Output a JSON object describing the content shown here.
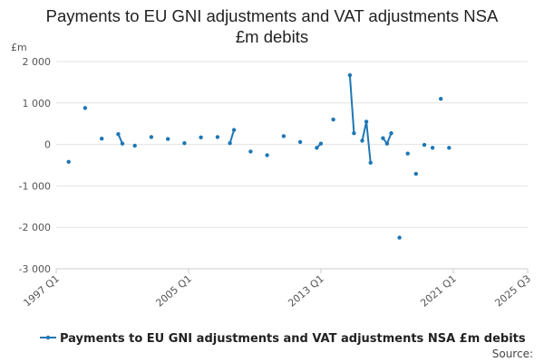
{
  "chart_data": {
    "type": "line",
    "title_lines": [
      "Payments to EU GNI adjustments and VAT adjustments NSA",
      "£m debits"
    ],
    "y_unit": "£m",
    "xlabel": "",
    "ylabel": "",
    "ylim": [
      -3000,
      2000
    ],
    "y_ticks": [
      2000,
      1000,
      0,
      -1000,
      -2000,
      -3000
    ],
    "y_tick_labels": [
      "2 000",
      "1 000",
      "0",
      "-1 000",
      "-2 000",
      "-3 000"
    ],
    "xlim": [
      1997.0,
      2025.5
    ],
    "x_ticks": [
      1997.0,
      2005.0,
      2013.0,
      2021.0,
      2025.5
    ],
    "x_tick_labels": [
      "1997 Q1",
      "2005 Q1",
      "2013 Q1",
      "2021 Q1",
      "2025 Q3"
    ],
    "grid": true,
    "legend_position": "bottom",
    "source_label": "Source:",
    "series": [
      {
        "name": "Payments to EU GNI adjustments and VAT adjustments NSA £m debits",
        "color": "#1f77b4",
        "segments": [
          [
            [
              1997.75,
              -420
            ]
          ],
          [
            [
              1998.75,
              880
            ]
          ],
          [
            [
              1999.75,
              140
            ]
          ],
          [
            [
              2000.75,
              250
            ],
            [
              2001.0,
              20
            ]
          ],
          [
            [
              2001.75,
              -30
            ]
          ],
          [
            [
              2002.75,
              180
            ]
          ],
          [
            [
              2003.75,
              130
            ]
          ],
          [
            [
              2004.75,
              30
            ]
          ],
          [
            [
              2005.75,
              170
            ]
          ],
          [
            [
              2006.75,
              180
            ]
          ],
          [
            [
              2007.5,
              30
            ],
            [
              2007.75,
              350
            ]
          ],
          [
            [
              2008.75,
              -170
            ]
          ],
          [
            [
              2009.75,
              -260
            ]
          ],
          [
            [
              2010.75,
              200
            ]
          ],
          [
            [
              2011.75,
              60
            ]
          ],
          [
            [
              2012.75,
              -80
            ],
            [
              2013.0,
              20
            ]
          ],
          [
            [
              2013.75,
              600
            ]
          ],
          [
            [
              2014.75,
              1670
            ],
            [
              2015.0,
              270
            ]
          ],
          [
            [
              2015.5,
              90
            ],
            [
              2015.75,
              550
            ],
            [
              2016.0,
              -440
            ]
          ],
          [
            [
              2016.75,
              150
            ],
            [
              2017.0,
              20
            ],
            [
              2017.25,
              270
            ]
          ],
          [
            [
              2017.75,
              -2250
            ]
          ],
          [
            [
              2018.25,
              -220
            ]
          ],
          [
            [
              2018.75,
              -710
            ]
          ],
          [
            [
              2019.25,
              -10
            ]
          ],
          [
            [
              2019.75,
              -80
            ]
          ],
          [
            [
              2020.25,
              1100
            ]
          ],
          [
            [
              2020.75,
              -80
            ]
          ]
        ]
      }
    ]
  }
}
